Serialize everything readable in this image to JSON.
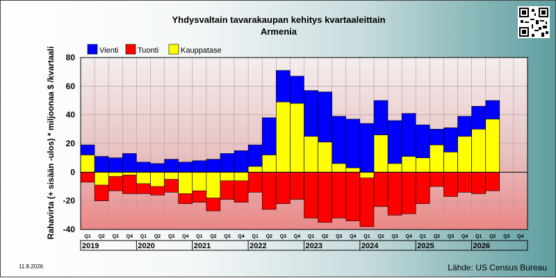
{
  "title": "Yhdysvaltain tavarakaupan kehitys kvartaaleittain",
  "subtitle": "Armenia",
  "date": "11.8.2026",
  "source": "Lähde: US Census Bureau",
  "chart_data": {
    "type": "bar",
    "ylabel": "Rahavirta (+ sisään -ulos)  * miljoonaa $ /kvartaali",
    "ylim": [
      -40,
      80
    ],
    "yticks": [
      -40,
      -20,
      0,
      20,
      40,
      60,
      80
    ],
    "legend_position": "top-left",
    "grid": true,
    "colors": {
      "Vienti": "#0000ff",
      "Tuonti": "#ff0000",
      "Kauppatase": "#ffff00"
    },
    "quarter_labels": [
      "Q1",
      "Q2",
      "Q3",
      "Q4",
      "Q1",
      "Q2",
      "Q3",
      "Q4",
      "Q1",
      "Q2",
      "Q3",
      "Q4",
      "Q1",
      "Q2",
      "Q3",
      "Q4",
      "Q1",
      "Q2",
      "Q3",
      "Q4",
      "Q1",
      "Q2",
      "Q3",
      "Q4",
      "Q1",
      "Q2",
      "Q3",
      "Q4",
      "Q1",
      "Q2",
      "Q3",
      "Q4"
    ],
    "years": [
      "2019",
      "2020",
      "2021",
      "2022",
      "2023",
      "2024",
      "2025",
      "2026"
    ],
    "series": [
      {
        "name": "Vienti",
        "values": [
          19,
          11,
          10,
          13,
          7,
          6,
          9,
          7,
          8,
          9,
          13,
          15,
          19,
          38,
          71,
          67,
          57,
          56,
          39,
          37,
          34,
          50,
          36,
          41,
          33,
          30,
          31,
          39,
          46,
          50,
          null,
          null
        ]
      },
      {
        "name": "Tuonti",
        "values": [
          -7,
          -20,
          -13,
          -15,
          -15,
          -16,
          -14,
          -22,
          -21,
          -27,
          -19,
          -21,
          -14,
          -26,
          -22,
          -19,
          -32,
          -35,
          -32,
          -34,
          -38,
          -24,
          -30,
          -29,
          -22,
          -10,
          -17,
          -14,
          -15,
          -13,
          null,
          null
        ]
      },
      {
        "name": "Kauppatase",
        "values": [
          12,
          -9,
          -3,
          -2,
          -8,
          -10,
          -5,
          -15,
          -13,
          -18,
          -6,
          -6,
          4,
          12,
          49,
          48,
          25,
          21,
          6,
          3,
          -4,
          26,
          6,
          11,
          10,
          19,
          14,
          25,
          30,
          37,
          null,
          null
        ]
      }
    ]
  }
}
